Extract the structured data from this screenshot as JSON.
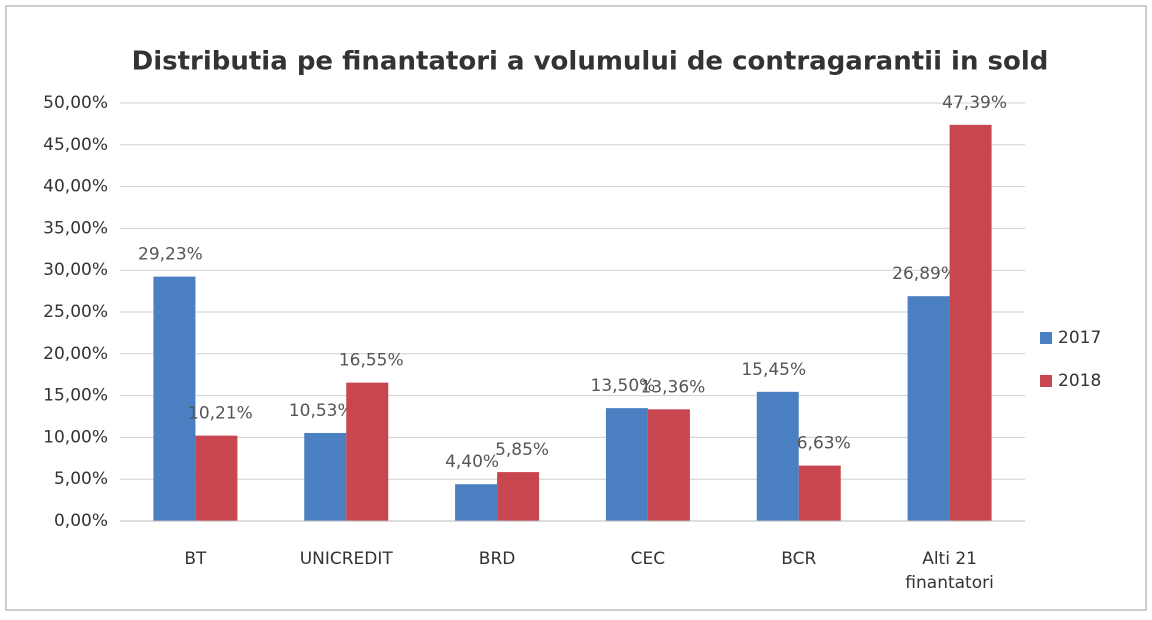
{
  "chart_data": {
    "type": "bar",
    "title": "Distributia pe finantatori a volumului de contragarantii in sold",
    "categories": [
      "BT",
      "UNICREDIT",
      "BRD",
      "CEC",
      "BCR",
      "Alti 21 finantatori"
    ],
    "series": [
      {
        "name": "2017",
        "color": "#4a7fc1",
        "values": [
          29.23,
          10.53,
          4.4,
          13.5,
          15.45,
          26.89
        ],
        "value_labels": [
          "29,23%",
          "10,53%",
          "4,40%",
          "13,50%",
          "15,45%",
          "26,89%"
        ]
      },
      {
        "name": "2018",
        "color": "#c8464f",
        "values": [
          10.21,
          16.55,
          5.85,
          13.36,
          6.63,
          47.39
        ],
        "value_labels": [
          "10,21%",
          "16,55%",
          "5,85%",
          "13,36%",
          "6,63%",
          "47,39%"
        ]
      }
    ],
    "ylim": [
      0,
      50
    ],
    "yticks": [
      {
        "value": 0,
        "label": "0,00%"
      },
      {
        "value": 5,
        "label": "5,00%"
      },
      {
        "value": 10,
        "label": "10,00%"
      },
      {
        "value": 15,
        "label": "15,00%"
      },
      {
        "value": 20,
        "label": "20,00%"
      },
      {
        "value": 25,
        "label": "25,00%"
      },
      {
        "value": 30,
        "label": "30,00%"
      },
      {
        "value": 35,
        "label": "35,00%"
      },
      {
        "value": 40,
        "label": "40,00%"
      },
      {
        "value": 45,
        "label": "45,00%"
      },
      {
        "value": 50,
        "label": "50,00%"
      }
    ],
    "grid": true,
    "legend": "right"
  }
}
